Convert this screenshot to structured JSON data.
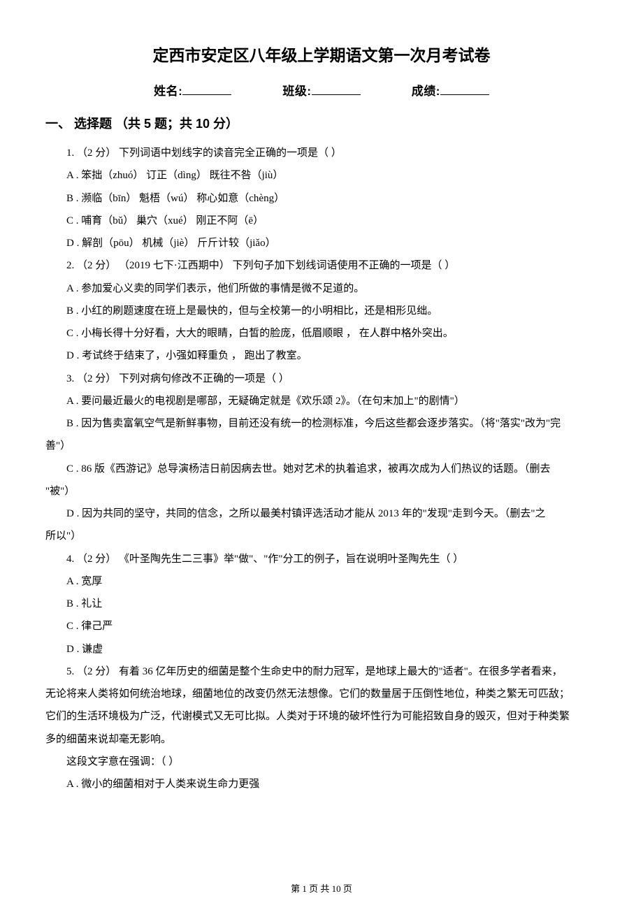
{
  "title": "定西市安定区八年级上学期语文第一次月考试卷",
  "header": {
    "name_label": "姓名:",
    "class_label": "班级:",
    "score_label": "成绩:"
  },
  "section1": {
    "heading": "一、 选择题 （共 5 题；共 10 分）",
    "q1": {
      "stem": "1.  （2 分） 下列词语中划线字的读音完全正确的一项是（     ）",
      "opts": {
        "A": "A . 笨拙（zhuó）  订正（dìng）    既往不咎（jiù）",
        "B": "B . 濒临（bīn）        魁梧（wú）      称心如意（chèng）",
        "C": "C . 哺育（bǔ）          巢穴（xué）     刚正不阿（ē）",
        "D": "D . 解剖（pōu）      机械（jiè）       斤斤计较（jiǎo）"
      }
    },
    "q2": {
      "stem": "2.  （2 分） （2019 七下·江西期中） 下列句子加下划线词语使用不正确的一项是（     ）",
      "opts": {
        "A": "A . 参加爱心义卖的同学们表示，他们所做的事情是微不足道的。",
        "B": "B . 小红的刷题速度在班上是最快的，但与全校第一的小明相比，还是相形见绌。",
        "C": "C . 小梅长得十分好看，大大的眼睛，白皙的脸庞，低眉顺眼 ，  在人群中格外突出。",
        "D": "D . 考试终于结束了，小强如释重负 ，  跑出了教室。"
      }
    },
    "q3": {
      "stem": "3.  （2 分） 下列对病句修改不正确的一项是（     ）",
      "opts": {
        "A": "A . 要问最近最火的电视剧是哪部，无疑确定就是《欢乐颂 2》。（在句末加上\"的剧情\"）",
        "B": "B . 因为售卖富氧空气是新鲜事物，目前还没有统一的检测标准，今后这些都会逐步落实。（将\"落实\"改为\"完",
        "B_cont": "善\"）",
        "C": "C . 86 版《西游记》总导演杨洁日前因病去世。她对艺术的执着追求，被再次成为人们热议的话题。（删去",
        "C_cont": "\"被\"）",
        "D": "D . 因为共同的坚守，共同的信念，之所以最美村镇评选活动才能从 2013 年的\"发现\"走到今天。（删去\"之",
        "D_cont": "所以\"）"
      }
    },
    "q4": {
      "stem": "4.  （2 分） 《叶圣陶先生二三事》举\"做\"、\"作\"分工的例子，旨在说明叶圣陶先生（     ）",
      "opts": {
        "A": "A . 宽厚",
        "B": "B . 礼让",
        "C": "C . 律己严",
        "D": "D . 谦虚"
      }
    },
    "q5": {
      "stem": "5.  （2 分）  有着 36 亿年历史的细菌是整个生命史中的耐力冠军，是地球上最大的\"适者\"。在很多学者看来，",
      "para2": "无论将来人类将如何统治地球，细菌地位的改变仍然无法想像。它们的数量居于压倒性地位，种类之繁无可匹敌；",
      "para3": "它们的生活环境极为广泛，代谢模式又无可比拟。人类对于环境的破坏性行为可能招致自身的毁灭，但对于种类繁",
      "para4": "多的细菌来说却毫无影响。",
      "ask": "这段文字意在强调：（     ）",
      "opts": {
        "A": "A . 微小的细菌相对于人类来说生命力更强"
      }
    }
  },
  "footer": "第 1 页 共 10 页"
}
